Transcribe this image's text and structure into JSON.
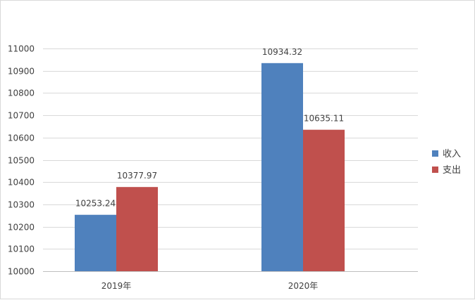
{
  "chart_data": {
    "type": "bar",
    "categories": [
      "2019年",
      "2020年"
    ],
    "series": [
      {
        "name": "收入",
        "values": [
          10253.24,
          10934.32
        ],
        "color": "#4f81bd"
      },
      {
        "name": "支出",
        "values": [
          10377.97,
          10635.11
        ],
        "color": "#c0504d"
      }
    ],
    "ylim": [
      10000,
      11000
    ],
    "ytick_step": 100,
    "grid": true,
    "legend_position": "right"
  }
}
